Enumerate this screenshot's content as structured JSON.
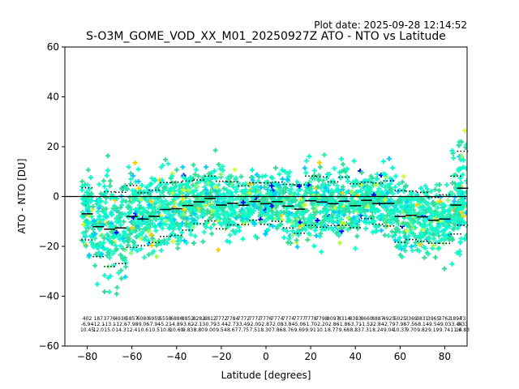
{
  "plot_date": "Plot date: 2025-09-28 12:14:52",
  "chart_data": {
    "type": "scatter",
    "title": "S-O3M_GOME_VOD_XX_M01_20250927Z ATO - NTO vs Latitude",
    "xlabel": "Latitude [degrees]",
    "ylabel": "ATO - NTO [DU]",
    "xlim": [
      -90,
      90
    ],
    "ylim": [
      -60,
      60
    ],
    "x_ticks": [
      -80,
      -60,
      -40,
      -20,
      0,
      20,
      40,
      60,
      80
    ],
    "y_ticks": [
      -60,
      -40,
      -20,
      0,
      20,
      40,
      60
    ],
    "grid": false,
    "zero_line": 0,
    "bins": [
      {
        "lat": -80,
        "n": "402",
        "mean": "-6.94",
        "sd": "10.45"
      },
      {
        "lat": -75,
        "n": "187",
        "mean": "-12.1",
        "sd": "12.0"
      },
      {
        "lat": -70,
        "n": "3776",
        "mean": "-13.1",
        "sd": "15.0"
      },
      {
        "lat": -65,
        "n": "4936",
        "mean": "-12.6",
        "sd": "14.3"
      },
      {
        "lat": -60,
        "n": "5857",
        "mean": "-7.98",
        "sd": "12.4"
      },
      {
        "lat": -55,
        "n": "6080",
        "mean": "-9.06",
        "sd": "10.6"
      },
      {
        "lat": -50,
        "n": "6959",
        "mean": "-7.94",
        "sd": "10.5"
      },
      {
        "lat": -45,
        "n": "5558",
        "mean": "-5.21",
        "sd": "10.8"
      },
      {
        "lat": -40,
        "n": "6886",
        "mean": "-4.89",
        "sd": "10.69"
      },
      {
        "lat": -35,
        "n": "8852",
        "mean": "-3.62",
        "sd": "9.83"
      },
      {
        "lat": -30,
        "n": "8282",
        "mean": "-2.13",
        "sd": "8.80"
      },
      {
        "lat": -25,
        "n": "8812",
        "mean": "-0.79",
        "sd": "9.00"
      },
      {
        "lat": -20,
        "n": "7772",
        "mean": "-3.44",
        "sd": "9.54"
      },
      {
        "lat": -15,
        "n": "7784",
        "mean": "-2.73",
        "sd": "8.67"
      },
      {
        "lat": -10,
        "n": "7772",
        "mean": "-3.49",
        "sd": "7.75"
      },
      {
        "lat": -5,
        "n": "7772",
        "mean": "-2.00",
        "sd": "7.51"
      },
      {
        "lat": 0,
        "n": "7776",
        "mean": "-2.87",
        "sd": "8.30"
      },
      {
        "lat": 5,
        "n": "7774",
        "mean": "-2.08",
        "sd": "7.86"
      },
      {
        "lat": 10,
        "n": "7774",
        "mean": "-3.84",
        "sd": "8.76"
      },
      {
        "lat": 15,
        "n": "7777",
        "mean": "-5.06",
        "sd": "9.69"
      },
      {
        "lat": 20,
        "n": "7778",
        "mean": "-1.70",
        "sd": "9.91"
      },
      {
        "lat": 25,
        "n": "7798",
        "mean": "-2.20",
        "sd": "10.1"
      },
      {
        "lat": 30,
        "n": "8097",
        "mean": "-2.86",
        "sd": "8.77"
      },
      {
        "lat": 35,
        "n": "8314",
        "mean": "-1.86",
        "sd": "9.68"
      },
      {
        "lat": 40,
        "n": "8383",
        "mean": "-3.71",
        "sd": "8.83"
      },
      {
        "lat": 45,
        "n": "8660",
        "mean": "-1.52",
        "sd": "7.31"
      },
      {
        "lat": 50,
        "n": "8887",
        "mean": "-2.84",
        "sd": "8.24"
      },
      {
        "lat": 55,
        "n": "4925",
        "mean": "-2.79",
        "sd": "9.04"
      },
      {
        "lat": 60,
        "n": "5025",
        "mean": "-7.98",
        "sd": "10.37"
      },
      {
        "lat": 65,
        "n": "3369",
        "mean": "-7.56",
        "sd": "9.70"
      },
      {
        "lat": 70,
        "n": "3831",
        "mean": "-8.14",
        "sd": "9.82"
      },
      {
        "lat": 75,
        "n": "3965",
        "mean": "-9.54",
        "sd": "9.19"
      },
      {
        "lat": 80,
        "n": "3762",
        "mean": "-9.03",
        "sd": "9.74"
      },
      {
        "lat": 85,
        "n": "1894",
        "mean": "-3.44",
        "sd": "11.6"
      },
      {
        "lat": 88,
        "n": "73",
        "mean": "3.33",
        "sd": "14.83"
      }
    ],
    "scatter_colors": [
      "#00ffcc",
      "#1ff5c8",
      "#33dd99",
      "#00ccff",
      "#3399ff",
      "#7fff7f",
      "#aaff44",
      "#ffcc00",
      "#ccff33",
      "#0000ff"
    ],
    "mean_color": "#000000"
  }
}
